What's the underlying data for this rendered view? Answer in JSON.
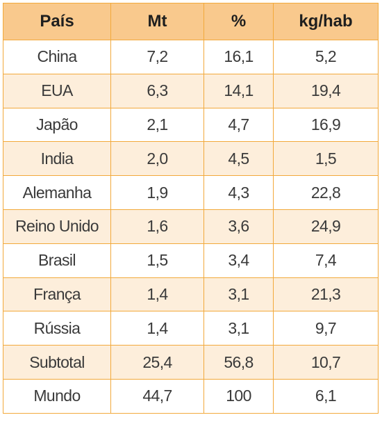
{
  "table": {
    "headers": [
      "País",
      "Mt",
      "%",
      "kg/hab"
    ],
    "rows": [
      [
        "China",
        "7,2",
        "16,1",
        "5,2"
      ],
      [
        "EUA",
        "6,3",
        "14,1",
        "19,4"
      ],
      [
        "Japão",
        "2,1",
        "4,7",
        "16,9"
      ],
      [
        "India",
        "2,0",
        "4,5",
        "1,5"
      ],
      [
        "Alemanha",
        "1,9",
        "4,3",
        "22,8"
      ],
      [
        "Reino Unido",
        "1,6",
        "3,6",
        "24,9"
      ],
      [
        "Brasil",
        "1,5",
        "3,4",
        "7,4"
      ],
      [
        "França",
        "1,4",
        "3,1",
        "21,3"
      ],
      [
        "Rússia",
        "1,4",
        "3,1",
        "9,7"
      ],
      [
        "Subtotal",
        "25,4",
        "56,8",
        "10,7"
      ],
      [
        "Mundo",
        "44,7",
        "100",
        "6,1"
      ]
    ]
  },
  "colors": {
    "header_background": "#f9c98d",
    "stripe_background": "#fdeedb",
    "border": "#f2a93b"
  }
}
